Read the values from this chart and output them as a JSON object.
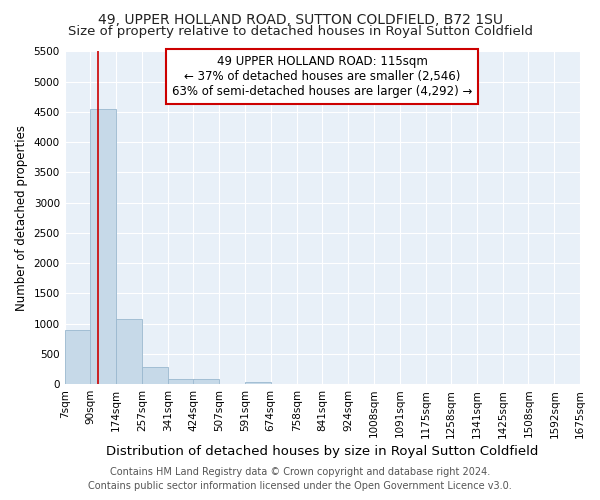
{
  "title": "49, UPPER HOLLAND ROAD, SUTTON COLDFIELD, B72 1SU",
  "subtitle": "Size of property relative to detached houses in Royal Sutton Coldfield",
  "xlabel": "Distribution of detached houses by size in Royal Sutton Coldfield",
  "ylabel": "Number of detached properties",
  "bins": [
    7,
    90,
    174,
    257,
    341,
    424,
    507,
    591,
    674,
    758,
    841,
    924,
    1008,
    1091,
    1175,
    1258,
    1341,
    1425,
    1508,
    1592,
    1675
  ],
  "bar_values": [
    900,
    4550,
    1075,
    285,
    85,
    85,
    0,
    40,
    0,
    0,
    0,
    0,
    0,
    0,
    0,
    0,
    0,
    0,
    0,
    0
  ],
  "bar_color": "#c6d9e8",
  "bar_edgecolor": "#9ab8cf",
  "property_size": 115,
  "vline_color": "#cc0000",
  "ylim": [
    0,
    5500
  ],
  "yticks": [
    0,
    500,
    1000,
    1500,
    2000,
    2500,
    3000,
    3500,
    4000,
    4500,
    5000,
    5500
  ],
  "annotation_text": "49 UPPER HOLLAND ROAD: 115sqm\n← 37% of detached houses are smaller (2,546)\n63% of semi-detached houses are larger (4,292) →",
  "annotation_box_facecolor": "#ffffff",
  "annotation_box_edgecolor": "#cc0000",
  "footer_line1": "Contains HM Land Registry data © Crown copyright and database right 2024.",
  "footer_line2": "Contains public sector information licensed under the Open Government Licence v3.0.",
  "fig_bg_color": "#ffffff",
  "plot_bg_color": "#e8f0f8",
  "title_fontsize": 10,
  "subtitle_fontsize": 9.5,
  "xlabel_fontsize": 9.5,
  "ylabel_fontsize": 8.5,
  "tick_fontsize": 7.5,
  "annot_fontsize": 8.5,
  "footer_fontsize": 7
}
